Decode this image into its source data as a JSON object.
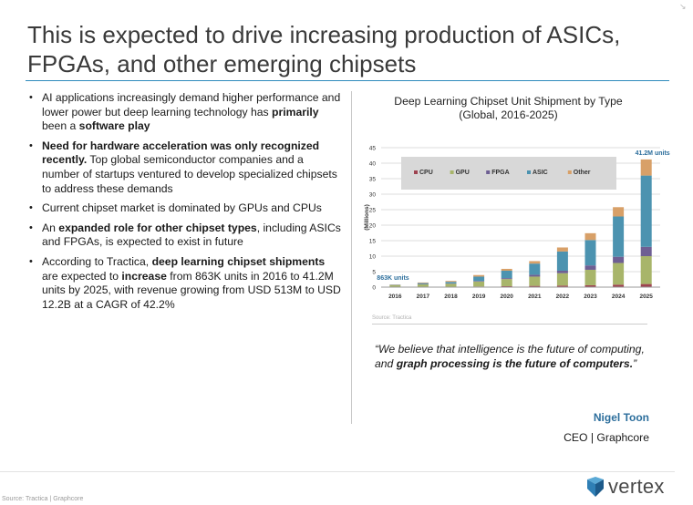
{
  "slide": {
    "title_line1": "This is expected to drive increasing production of ASICs,",
    "title_line2": "FPGAs, and other emerging chipsets"
  },
  "bullets": [
    {
      "parts": [
        {
          "t": "AI applications increasingly demand higher performance and lower power but deep learning technology has "
        },
        {
          "t": "primarily",
          "b": true
        },
        {
          "t": " been a "
        },
        {
          "t": "software play",
          "b": true
        }
      ]
    },
    {
      "parts": [
        {
          "t": "Need for hardware acceleration was only recognized recently.",
          "b": true
        },
        {
          "t": " Top global semiconductor companies and a number of startups ventured to develop specialized chipsets to address these demands"
        }
      ]
    },
    {
      "parts": [
        {
          "t": "Current chipset market is dominated by GPUs and CPUs"
        }
      ]
    },
    {
      "parts": [
        {
          "t": "An "
        },
        {
          "t": "expanded role for other chipset types",
          "b": true
        },
        {
          "t": ", including ASICs and FPGAs, is expected to exist in future"
        }
      ]
    },
    {
      "parts": [
        {
          "t": "According to Tractica, "
        },
        {
          "t": "deep learning chipset shipments",
          "b": true
        },
        {
          "t": " are expected to "
        },
        {
          "t": "increase",
          "b": true
        },
        {
          "t": " from 863K units in 2016 to 41.2M units by 2025, with revenue growing from USD 513M to USD 12.2B at a CAGR of 42.2%"
        }
      ]
    }
  ],
  "chart_data": {
    "type": "bar",
    "stacked": true,
    "title": "Deep Learning Chipset Unit Shipment by Type",
    "subtitle": "(Global, 2016-2025)",
    "xlabel": "",
    "ylabel": "(Millions)",
    "ylim": [
      0,
      45
    ],
    "yticks": [
      0,
      5,
      10,
      15,
      20,
      25,
      30,
      35,
      40,
      45
    ],
    "grid": true,
    "legend_position": "top",
    "categories": [
      "2016",
      "2017",
      "2018",
      "2019",
      "2020",
      "2021",
      "2022",
      "2023",
      "2024",
      "2025"
    ],
    "series": [
      {
        "name": "CPU",
        "color": "#9e4350",
        "values": [
          0.1,
          0.1,
          0.1,
          0.2,
          0.3,
          0.4,
          0.5,
          0.6,
          0.8,
          1.0
        ]
      },
      {
        "name": "GPU",
        "color": "#a8b56a",
        "values": [
          0.5,
          0.8,
          1.0,
          1.6,
          2.3,
          3.0,
          4.0,
          5.0,
          7.0,
          9.0
        ]
      },
      {
        "name": "FPGA",
        "color": "#6e5f93",
        "values": [
          0.05,
          0.1,
          0.1,
          0.2,
          0.3,
          0.6,
          0.8,
          1.4,
          2.0,
          3.0
        ]
      },
      {
        "name": "ASIC",
        "color": "#4c93b0",
        "values": [
          0.1,
          0.3,
          0.5,
          1.4,
          2.4,
          3.6,
          6.2,
          8.2,
          13.0,
          23.0
        ]
      },
      {
        "name": "Other",
        "color": "#d8a068",
        "values": [
          0.1,
          0.2,
          0.3,
          0.5,
          0.6,
          0.8,
          1.3,
          2.2,
          3.0,
          5.2
        ]
      }
    ],
    "annotations": [
      {
        "text": "863K units",
        "category": "2016",
        "color": "#2c6e9c"
      },
      {
        "text": "41.2M units",
        "category": "2025",
        "color": "#2c6e9c"
      }
    ],
    "source": "Source: Tractica"
  },
  "quote": {
    "open": "“We believe that intelligence is the future of computing, and ",
    "bold": "graph processing is the future of computers.",
    "close": "”"
  },
  "author": {
    "name": "Nigel Toon",
    "role": "CEO | Graphcore"
  },
  "footer": {
    "source": "Source: Tractica | Graphcore"
  },
  "logo": {
    "text": "vertex",
    "icon": "vertex-logo-icon"
  },
  "corner": {
    "icon": "resize-handle-icon"
  }
}
